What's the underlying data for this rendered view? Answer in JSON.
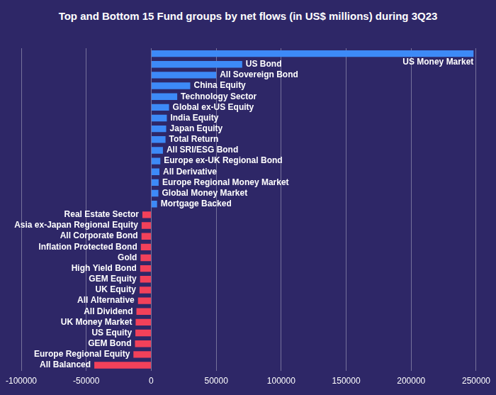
{
  "chart_data": {
    "type": "bar",
    "orientation": "horizontal",
    "title": "Top and Bottom 15 Fund groups by net flows (in US$ millions) during 3Q23",
    "categories": [
      "US Money Market",
      "US Bond",
      "All Sovereign Bond",
      "China Equity",
      "Technology Sector",
      "Global ex-US Equity",
      "India Equity",
      "Japan Equity",
      "Total Return",
      "All SRI/ESG Bond",
      "Europe ex-UK Regional Bond",
      "All Derivative",
      "Europe Regional Money Market",
      "Global Money Market",
      "Mortgage Backed",
      "Real Estate Sector",
      "Asia ex-Japan Regional Equity",
      "All Corporate Bond",
      "Inflation Protected Bond",
      "Gold",
      "High Yield Bond",
      "GEM Equity",
      "UK Equity",
      "All Alternative",
      "All Dividend",
      "UK Money Market",
      "US Equity",
      "GEM Bond",
      "Europe Regional Equity",
      "All Balanced"
    ],
    "values": [
      248000,
      70000,
      50000,
      30000,
      20000,
      13700,
      12000,
      11500,
      11000,
      9000,
      7000,
      6300,
      5700,
      5500,
      4500,
      -6800,
      -7400,
      -7500,
      -8000,
      -8200,
      -8500,
      -8600,
      -9000,
      -10200,
      -11400,
      -12000,
      -12200,
      -12500,
      -13700,
      -43800
    ],
    "colors": [
      "#3d8af7",
      "#3d8af7",
      "#3d8af7",
      "#3d8af7",
      "#3d8af7",
      "#3d8af7",
      "#3d8af7",
      "#3d8af7",
      "#3d8af7",
      "#3d8af7",
      "#3d8af7",
      "#3d8af7",
      "#3d8af7",
      "#3d8af7",
      "#3d8af7",
      "#f2415a",
      "#f2415a",
      "#f2415a",
      "#f2415a",
      "#f2415a",
      "#f2415a",
      "#f2415a",
      "#f2415a",
      "#f2415a",
      "#f2415a",
      "#f2415a",
      "#f2415a",
      "#f2415a",
      "#f2415a",
      "#f2415a"
    ],
    "xlim": [
      -100000,
      250000
    ],
    "xticks": [
      -100000,
      -50000,
      0,
      50000,
      100000,
      150000,
      200000,
      250000
    ],
    "grid": true
  }
}
